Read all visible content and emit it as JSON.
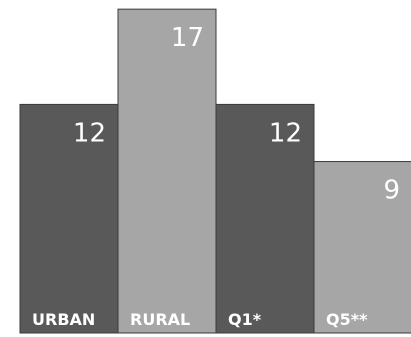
{
  "chart_data": {
    "type": "bar",
    "categories": [
      "URBAN",
      "RURAL",
      "Q1*",
      "Q5**"
    ],
    "values": [
      12,
      17,
      12,
      9
    ],
    "data_labels": [
      "12",
      "17",
      "12",
      "9"
    ],
    "bar_colors": [
      "#595959",
      "#a6a6a6",
      "#595959",
      "#a6a6a6"
    ],
    "ylim": [
      0,
      18
    ],
    "grid": false,
    "legend": "none"
  }
}
